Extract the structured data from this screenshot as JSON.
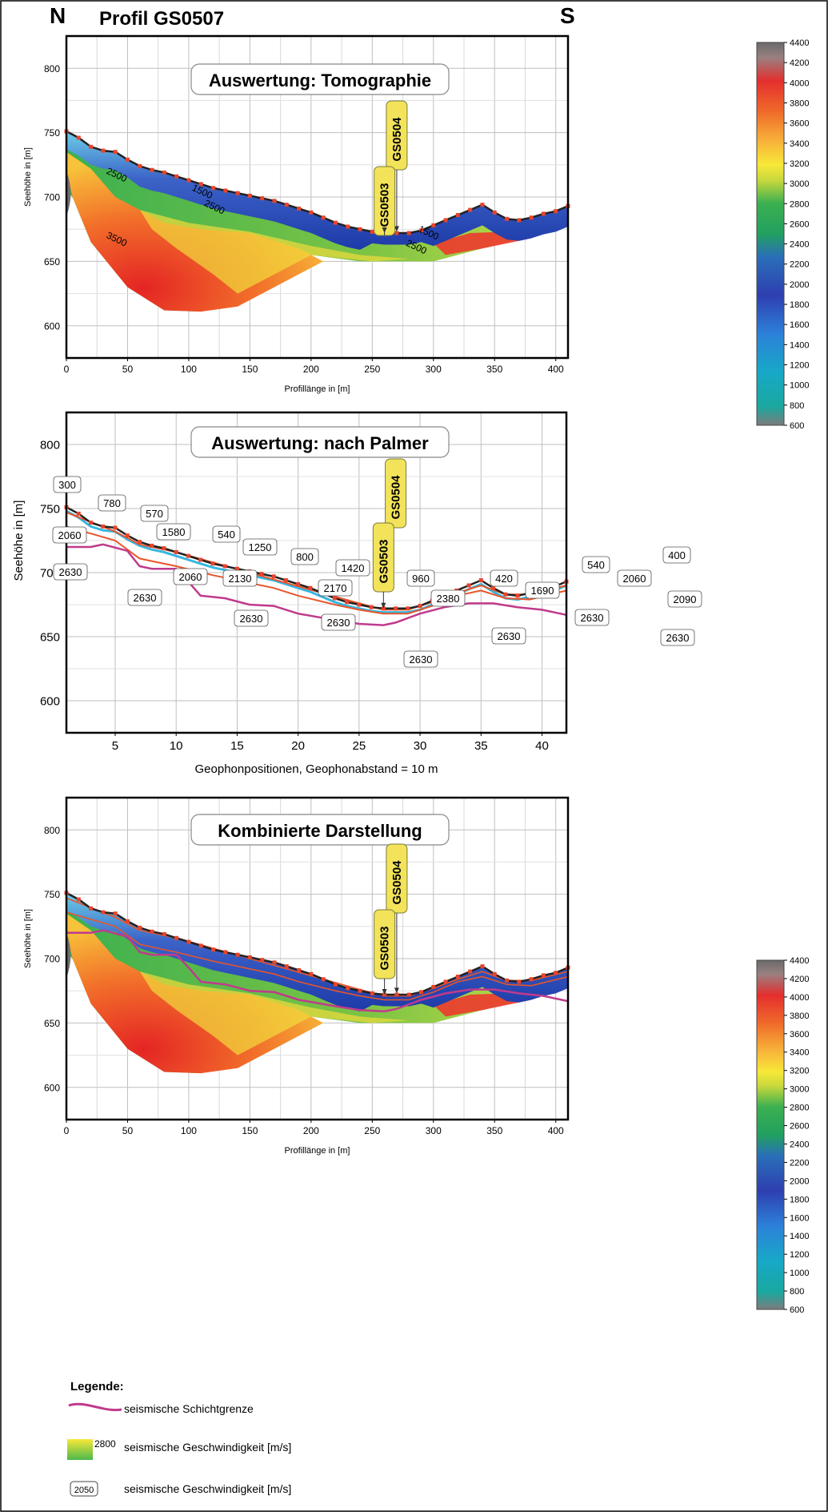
{
  "header": {
    "left_label": "N",
    "title": "Profil GS0507",
    "right_label": "S"
  },
  "colors": {
    "surface_line": "#222222",
    "surface_markers": "#e8442c",
    "layer_orange": "#e8552a",
    "layer_magenta": "#c03a8c",
    "layer_cyan": "#36b6e0",
    "grid": "#bfbfbf",
    "frame": "#000000",
    "borehole_fill": "#f2e35a"
  },
  "legend": {
    "title": "Legende:",
    "line_label": "seismische Schichtgrenze",
    "gradient_value": "2800",
    "gradient_label": "seismische Geschwindigkeit [m/s]",
    "box_value": "2050",
    "box_label": "seismische Geschwindigkeit [m/s]"
  },
  "chart_data": [
    {
      "type": "heatmap",
      "title": "Auswertung: Tomographie",
      "xlabel": "Profillänge in [m]",
      "ylabel": "Seehöhe in [m]",
      "xlim": [
        0,
        410
      ],
      "ylim": [
        575,
        825
      ],
      "xticks": [
        0,
        50,
        100,
        150,
        200,
        250,
        300,
        350,
        400
      ],
      "yticks": [
        600,
        650,
        700,
        750,
        800
      ],
      "grid": true,
      "colorbar": {
        "min": 600,
        "max": 4400,
        "ticks": [
          600,
          800,
          1000,
          1200,
          1400,
          1600,
          1800,
          2000,
          2200,
          2400,
          2600,
          2800,
          3000,
          3200,
          3400,
          3600,
          3800,
          4000,
          4200,
          4400
        ]
      },
      "surface": {
        "x": [
          0,
          10,
          20,
          30,
          40,
          50,
          60,
          70,
          80,
          90,
          100,
          110,
          120,
          130,
          140,
          150,
          160,
          170,
          180,
          190,
          200,
          210,
          220,
          230,
          240,
          250,
          260,
          270,
          280,
          290,
          300,
          310,
          320,
          330,
          340,
          350,
          360,
          370,
          380,
          390,
          400,
          410
        ],
        "y": [
          751,
          746,
          739,
          736,
          735,
          729,
          724,
          721,
          719,
          716,
          713,
          710,
          707,
          705,
          703,
          701,
          699,
          697,
          694,
          691,
          688,
          684,
          680,
          677,
          675,
          673,
          672,
          672,
          672,
          674,
          678,
          682,
          686,
          690,
          694,
          688,
          683,
          682,
          684,
          687,
          689,
          693
        ]
      },
      "contours": [
        {
          "label": "1500",
          "x": 110,
          "y": 702
        },
        {
          "label": "2500",
          "x": 40,
          "y": 715
        },
        {
          "label": "2500",
          "x": 120,
          "y": 690
        },
        {
          "label": "3500",
          "x": 40,
          "y": 665
        },
        {
          "label": "1500",
          "x": 295,
          "y": 670
        },
        {
          "label": "2500",
          "x": 285,
          "y": 659
        }
      ],
      "boreholes": [
        {
          "label": "GS0504",
          "x": 270
        },
        {
          "label": "GS0503",
          "x": 260
        }
      ]
    },
    {
      "type": "line",
      "title": "Auswertung: nach Palmer",
      "xlabel": "Geophonpositionen, Geophonabstand = 10 m",
      "ylabel": "Seehöhe in [m]",
      "xlim": [
        1,
        42
      ],
      "ylim": [
        575,
        825
      ],
      "xticks": [
        5,
        10,
        15,
        20,
        25,
        30,
        35,
        40
      ],
      "yticks": [
        600,
        650,
        700,
        750,
        800
      ],
      "grid": true,
      "series": [
        {
          "name": "surface",
          "x": [
            1,
            2,
            3,
            4,
            5,
            6,
            7,
            8,
            9,
            10,
            11,
            12,
            13,
            14,
            15,
            16,
            17,
            18,
            19,
            20,
            21,
            22,
            23,
            24,
            25,
            26,
            27,
            28,
            29,
            30,
            31,
            32,
            33,
            34,
            35,
            36,
            37,
            38,
            39,
            40,
            41,
            42
          ],
          "y": [
            751,
            746,
            739,
            736,
            735,
            729,
            724,
            721,
            719,
            716,
            713,
            710,
            707,
            705,
            703,
            701,
            699,
            697,
            694,
            691,
            688,
            684,
            680,
            677,
            675,
            673,
            672,
            672,
            672,
            674,
            678,
            682,
            686,
            690,
            694,
            688,
            683,
            682,
            684,
            687,
            689,
            693
          ]
        },
        {
          "name": "layer-1",
          "x": [
            1,
            5,
            7,
            10,
            13,
            16,
            19,
            22,
            25,
            27,
            29,
            31,
            33,
            35,
            37,
            39,
            42
          ],
          "y": [
            747,
            732,
            722,
            716,
            708,
            700,
            692,
            684,
            676,
            671,
            671,
            677,
            684,
            690,
            683,
            683,
            690
          ]
        },
        {
          "name": "layer-2",
          "x": [
            1,
            5,
            7,
            8,
            10,
            13,
            15,
            18,
            20,
            23,
            25,
            27,
            29,
            31,
            33,
            35,
            37,
            39,
            42
          ],
          "y": [
            736,
            725,
            711,
            709,
            705,
            698,
            694,
            688,
            682,
            675,
            671,
            668,
            668,
            674,
            682,
            686,
            680,
            679,
            686
          ]
        },
        {
          "name": "layer-3",
          "x": [
            1,
            3,
            4,
            6,
            7,
            8,
            10,
            11,
            12,
            14,
            16,
            18,
            20,
            23,
            25,
            27,
            28,
            30,
            32,
            34,
            36,
            38,
            40,
            42
          ],
          "y": [
            720,
            720,
            722,
            717,
            705,
            703,
            703,
            693,
            682,
            680,
            675,
            674,
            668,
            663,
            660,
            659,
            661,
            668,
            673,
            676,
            676,
            673,
            671,
            667
          ]
        }
      ],
      "velocity_labels": [
        "300",
        "780",
        "570",
        "2060",
        "1580",
        "540",
        "1250",
        "800",
        "1420",
        "960",
        "2380",
        "420",
        "1690",
        "540",
        "2060",
        "400",
        "2090",
        "2630",
        "2060",
        "2130",
        "2170",
        "2630",
        "2630",
        "2630",
        "2630",
        "2630",
        "2630",
        "2630"
      ],
      "boreholes": [
        {
          "label": "GS0504",
          "x": 28
        },
        {
          "label": "GS0503",
          "x": 27
        }
      ]
    },
    {
      "type": "heatmap",
      "title": "Kombinierte Darstellung",
      "xlabel": "Profillänge in [m]",
      "ylabel": "Seehöhe in [m]",
      "xlim": [
        0,
        410
      ],
      "ylim": [
        575,
        825
      ],
      "xticks": [
        0,
        50,
        100,
        150,
        200,
        250,
        300,
        350,
        400
      ],
      "yticks": [
        600,
        650,
        700,
        750,
        800
      ],
      "grid": true,
      "colorbar": {
        "min": 600,
        "max": 4400,
        "ticks": [
          600,
          800,
          1000,
          1200,
          1400,
          1600,
          1800,
          2000,
          2200,
          2400,
          2600,
          2800,
          3000,
          3200,
          3400,
          3600,
          3800,
          4000,
          4200,
          4400
        ]
      },
      "boreholes": [
        {
          "label": "GS0504",
          "x": 270
        },
        {
          "label": "GS0503",
          "x": 260
        }
      ]
    }
  ]
}
